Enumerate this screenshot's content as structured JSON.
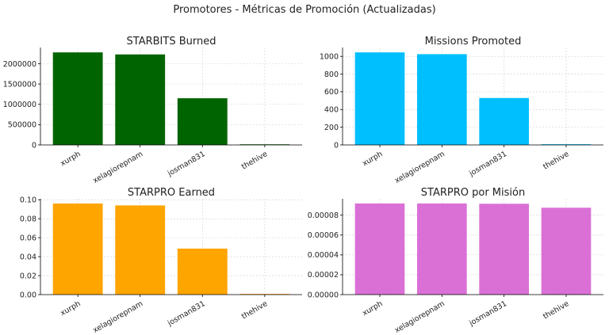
{
  "figure_title": "Promotores - Métricas de Promoción (Actualizadas)",
  "chart_data": [
    {
      "type": "bar",
      "title": "STARBITS Burned",
      "categories": [
        "xurph",
        "xelagiorepnam",
        "josman831",
        "thehive"
      ],
      "values": [
        2280000,
        2230000,
        1150000,
        15000
      ],
      "color": "#006400",
      "ylim": [
        0,
        2400000
      ],
      "yticks": [
        0,
        500000,
        1000000,
        1500000,
        2000000
      ],
      "ytick_labels": [
        "0",
        "500000",
        "1000000",
        "1500000",
        "2000000"
      ],
      "grid": true
    },
    {
      "type": "bar",
      "title": "Missions Promoted",
      "categories": [
        "xurph",
        "xelagiorepnam",
        "josman831",
        "thehive"
      ],
      "values": [
        1045,
        1025,
        530,
        8
      ],
      "color": "#00BFFF",
      "ylim": [
        0,
        1100
      ],
      "yticks": [
        0,
        200,
        400,
        600,
        800,
        1000
      ],
      "ytick_labels": [
        "0",
        "200",
        "400",
        "600",
        "800",
        "1000"
      ],
      "grid": true
    },
    {
      "type": "bar",
      "title": "STARPRO Earned",
      "categories": [
        "xurph",
        "xelagiorepnam",
        "josman831",
        "thehive"
      ],
      "values": [
        0.096,
        0.094,
        0.0485,
        0.0007
      ],
      "color": "#FFA500",
      "ylim": [
        0,
        0.101
      ],
      "yticks": [
        0,
        0.02,
        0.04,
        0.06,
        0.08,
        0.1
      ],
      "ytick_labels": [
        "0.00",
        "0.02",
        "0.04",
        "0.06",
        "0.08",
        "0.10"
      ],
      "grid": true
    },
    {
      "type": "bar",
      "title": "STARPRO por Misión",
      "categories": [
        "xurph",
        "xelagiorepnam",
        "josman831",
        "thehive"
      ],
      "values": [
        9.18e-05,
        9.18e-05,
        9.15e-05,
        8.75e-05
      ],
      "color": "#DA70D6",
      "ylim": [
        0,
        9.65e-05
      ],
      "yticks": [
        0,
        2e-05,
        4e-05,
        6e-05,
        8e-05
      ],
      "ytick_labels": [
        "0.00000",
        "0.00002",
        "0.00004",
        "0.00006",
        "0.00008"
      ],
      "grid": true
    }
  ]
}
